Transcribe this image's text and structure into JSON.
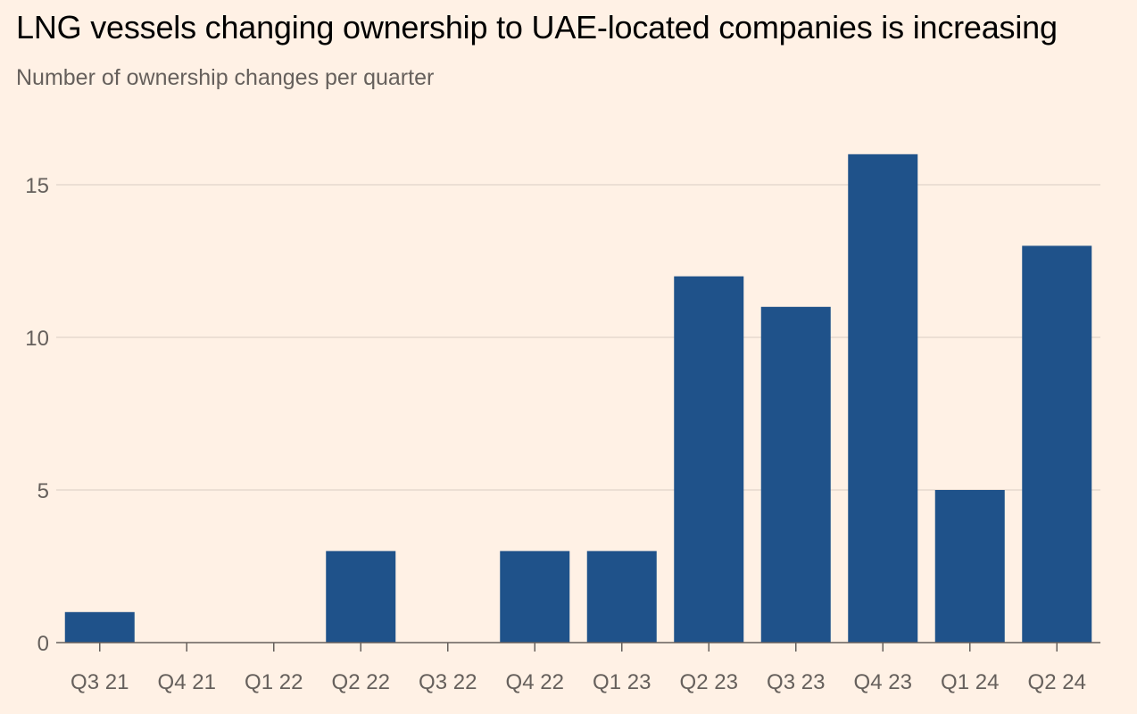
{
  "title": "LNG vessels changing ownership to UAE-located companies is increasing",
  "subtitle": "Number of ownership changes per quarter",
  "colors": {
    "background": "#fff1e5",
    "bar": "#1f528a",
    "grid": "#e6d9ce",
    "axis": "#66605c",
    "text": "#66605c",
    "title": "#000000"
  },
  "chart_data": {
    "type": "bar",
    "title": "LNG vessels changing ownership to UAE-located companies is increasing",
    "subtitle": "Number of ownership changes per quarter",
    "xlabel": "",
    "ylabel": "",
    "categories": [
      "Q3 21",
      "Q4 21",
      "Q1 22",
      "Q2 22",
      "Q3 22",
      "Q4 22",
      "Q1 23",
      "Q2 23",
      "Q3 23",
      "Q4 23",
      "Q1 24",
      "Q2 24"
    ],
    "values": [
      1,
      0,
      0,
      3,
      0,
      3,
      3,
      12,
      11,
      16,
      5,
      13
    ],
    "ylim": [
      0,
      16
    ],
    "yticks": [
      0,
      5,
      10,
      15
    ],
    "grid": true,
    "legend": "none"
  }
}
